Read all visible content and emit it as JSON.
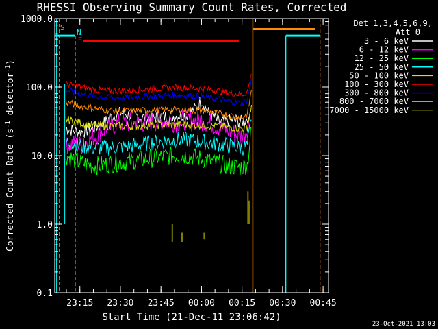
{
  "chart_data": {
    "type": "line",
    "title": "RHESSI Observing Summary Count Rates, Corrected",
    "xlabel": "Start Time (21-Dec-11 23:06:42)",
    "ylabel": "Corrected Count Rate (s",
    "ylabel_sup": "-1",
    "ylabel_tail": " detector",
    "ylabel_tail_close": ")",
    "yscale": "log",
    "ylim": [
      0.1,
      1000
    ],
    "y_ticks": [
      "0.1",
      "1.0",
      "10.0",
      "100.0",
      "1000.0"
    ],
    "xlim_minutes": [
      -54.3,
      47.0
    ],
    "x_ticks": [
      {
        "label": "23:15",
        "minutes": -45
      },
      {
        "label": "23:30",
        "minutes": -30
      },
      {
        "label": "23:45",
        "minutes": -15
      },
      {
        "label": "00:00",
        "minutes": 0
      },
      {
        "label": "00:15",
        "minutes": 15
      },
      {
        "label": "00:30",
        "minutes": 30
      },
      {
        "label": "00:45",
        "minutes": 45
      }
    ],
    "legend_header": [
      "Det 1,3,4,5,6,9,",
      "Att 0"
    ],
    "series": [
      {
        "name": "3 - 6 keV",
        "color": "#ffffff",
        "values": [
          [
            -50.2,
            25
          ],
          [
            -45,
            22
          ],
          [
            -40,
            25
          ],
          [
            -36,
            30
          ],
          [
            -33,
            38
          ],
          [
            -30,
            42
          ],
          [
            -25,
            38
          ],
          [
            -20,
            35
          ],
          [
            -15,
            37
          ],
          [
            -10,
            38
          ],
          [
            -5,
            40
          ],
          [
            -2,
            50
          ],
          [
            0,
            65
          ],
          [
            3,
            40
          ],
          [
            7,
            30
          ],
          [
            11,
            33
          ],
          [
            15,
            31
          ],
          [
            17.5,
            37
          ]
        ]
      },
      {
        "name": "6 - 12 keV",
        "color": "#ff00ff",
        "values": [
          [
            -50.2,
            15
          ],
          [
            -45,
            14
          ],
          [
            -40,
            19
          ],
          [
            -36,
            24
          ],
          [
            -30,
            30
          ],
          [
            -25,
            30
          ],
          [
            -20,
            31
          ],
          [
            -15,
            32
          ],
          [
            -10,
            31
          ],
          [
            -5,
            32
          ],
          [
            0,
            33
          ],
          [
            5,
            28
          ],
          [
            10,
            23
          ],
          [
            14,
            19
          ],
          [
            16,
            21
          ],
          [
            18,
            33
          ]
        ]
      },
      {
        "name": "12 - 25 keV",
        "color": "#00ff00",
        "values": [
          [
            -50.2,
            10
          ],
          [
            -45,
            8
          ],
          [
            -40,
            7
          ],
          [
            -35,
            7.5
          ],
          [
            -30,
            8
          ],
          [
            -25,
            8.5
          ],
          [
            -20,
            9
          ],
          [
            -15,
            9.5
          ],
          [
            -10,
            10
          ],
          [
            -5,
            10
          ],
          [
            0,
            9
          ],
          [
            5,
            8
          ],
          [
            10,
            7
          ],
          [
            15,
            6.8
          ],
          [
            17,
            7.5
          ],
          [
            18.5,
            25
          ]
        ]
      },
      {
        "name": "25 - 50 keV",
        "color": "#00ffff",
        "values": [
          [
            -50.2,
            16
          ],
          [
            -45,
            14
          ],
          [
            -40,
            13
          ],
          [
            -35,
            13
          ],
          [
            -30,
            13.5
          ],
          [
            -25,
            14
          ],
          [
            -20,
            15
          ],
          [
            -15,
            16
          ],
          [
            -10,
            17
          ],
          [
            -5,
            17
          ],
          [
            0,
            16
          ],
          [
            5,
            15
          ],
          [
            10,
            14
          ],
          [
            15,
            13
          ],
          [
            17,
            14
          ],
          [
            18.5,
            33
          ]
        ]
      },
      {
        "name": "50 - 100 keV",
        "color": "#e0e000",
        "values": [
          [
            -50.2,
            34
          ],
          [
            -45,
            30
          ],
          [
            -40,
            28
          ],
          [
            -35,
            27
          ],
          [
            -30,
            27
          ],
          [
            -25,
            27
          ],
          [
            -20,
            28
          ],
          [
            -15,
            28
          ],
          [
            -10,
            28
          ],
          [
            -5,
            28
          ],
          [
            0,
            28
          ],
          [
            5,
            27
          ],
          [
            10,
            26
          ],
          [
            15,
            25
          ],
          [
            17,
            26
          ],
          [
            18.5,
            55
          ]
        ]
      },
      {
        "name": "100 - 300 keV",
        "color": "#ff0000",
        "values": [
          [
            -50.2,
            110
          ],
          [
            -45,
            100
          ],
          [
            -40,
            92
          ],
          [
            -35,
            88
          ],
          [
            -30,
            88
          ],
          [
            -25,
            90
          ],
          [
            -20,
            93
          ],
          [
            -15,
            95
          ],
          [
            -10,
            98
          ],
          [
            -5,
            97
          ],
          [
            0,
            95
          ],
          [
            5,
            90
          ],
          [
            10,
            82
          ],
          [
            15,
            78
          ],
          [
            17,
            85
          ],
          [
            18.5,
            155
          ]
        ]
      },
      {
        "name": "300 - 800 keV",
        "color": "#0000ff",
        "values": [
          [
            -50.2,
            90
          ],
          [
            -45,
            80
          ],
          [
            -40,
            74
          ],
          [
            -35,
            70
          ],
          [
            -30,
            70
          ],
          [
            -25,
            71
          ],
          [
            -20,
            73
          ],
          [
            -15,
            75
          ],
          [
            -10,
            76
          ],
          [
            -5,
            75
          ],
          [
            0,
            73
          ],
          [
            5,
            68
          ],
          [
            10,
            62
          ],
          [
            15,
            58
          ],
          [
            17,
            65
          ],
          [
            18.5,
            130
          ]
        ]
      },
      {
        "name": "800 - 7000 keV",
        "color": "#ff8c00",
        "values": [
          [
            -50.2,
            60
          ],
          [
            -45,
            53
          ],
          [
            -40,
            49
          ],
          [
            -35,
            46
          ],
          [
            -30,
            45
          ],
          [
            -25,
            45
          ],
          [
            -20,
            46
          ],
          [
            -15,
            47
          ],
          [
            -10,
            47
          ],
          [
            -5,
            46
          ],
          [
            0,
            45
          ],
          [
            5,
            42
          ],
          [
            10,
            39
          ],
          [
            15,
            36
          ],
          [
            17,
            40
          ],
          [
            18.5,
            90
          ]
        ]
      },
      {
        "name": "7000 - 15000 keV",
        "color": "#808000",
        "values": []
      }
    ],
    "annotations": [
      {
        "text": "S",
        "color": "#ff8c00"
      },
      {
        "text": "N",
        "color": "#00ffff"
      },
      {
        "text": "F",
        "color": "#ff0000"
      }
    ],
    "footer_timestamp": "23-Oct-2021 13:03"
  }
}
